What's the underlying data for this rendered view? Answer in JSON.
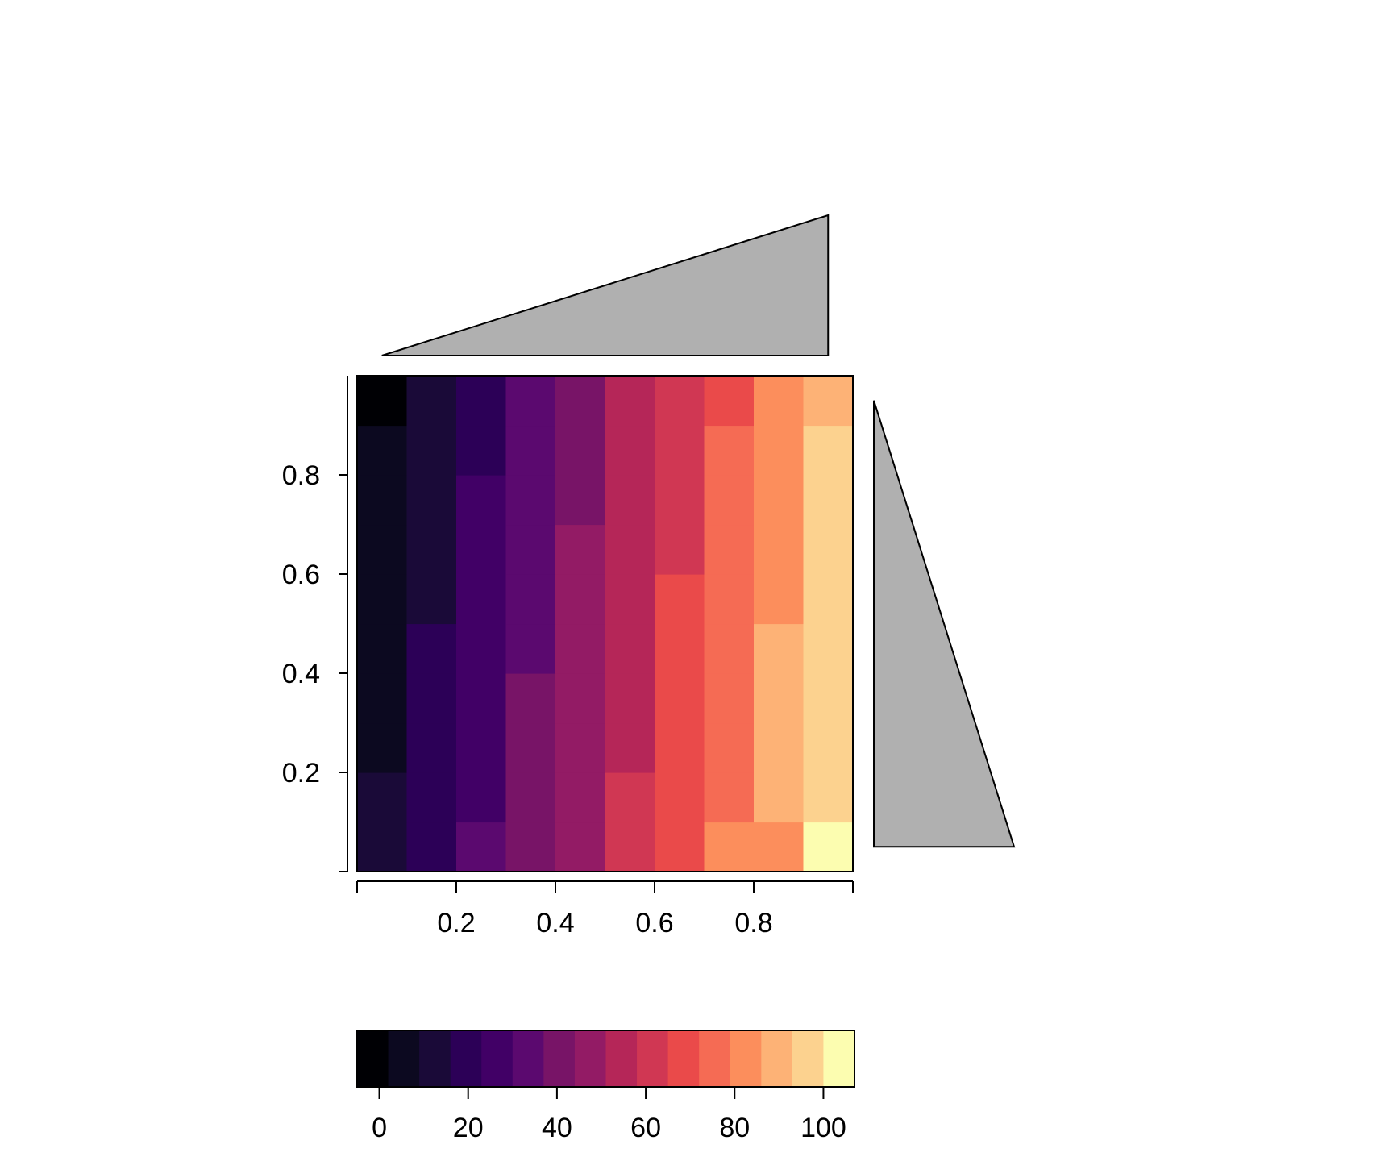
{
  "chart_data": {
    "type": "heatmap",
    "title": "",
    "xlabel": "",
    "ylabel": "",
    "xlim": [
      0,
      1
    ],
    "ylim": [
      0,
      1
    ],
    "grid": false,
    "x_centers": [
      0.05,
      0.15,
      0.25,
      0.35,
      0.45,
      0.55,
      0.65,
      0.75,
      0.85,
      0.95
    ],
    "y_centers": [
      0.05,
      0.15,
      0.25,
      0.35,
      0.45,
      0.55,
      0.65,
      0.75,
      0.85,
      0.95
    ],
    "x_ticks": [
      {
        "value": 0.2,
        "label": "0.2"
      },
      {
        "value": 0.4,
        "label": "0.4"
      },
      {
        "value": 0.6,
        "label": "0.6"
      },
      {
        "value": 0.8,
        "label": "0.8"
      }
    ],
    "y_ticks": [
      {
        "value": 0.2,
        "label": "0.2"
      },
      {
        "value": 0.4,
        "label": "0.4"
      },
      {
        "value": 0.6,
        "label": "0.6"
      },
      {
        "value": 0.8,
        "label": "0.8"
      }
    ],
    "z_columns": [
      [
        2,
        2,
        1,
        1,
        1,
        1,
        1,
        1,
        1,
        0
      ],
      [
        3,
        3,
        3,
        3,
        3,
        2,
        2,
        2,
        2,
        2
      ],
      [
        5,
        4,
        4,
        4,
        4,
        4,
        4,
        4,
        3,
        3
      ],
      [
        6,
        6,
        6,
        6,
        5,
        5,
        5,
        5,
        5,
        5
      ],
      [
        7,
        7,
        7,
        7,
        7,
        7,
        7,
        6,
        6,
        6
      ],
      [
        9,
        9,
        8,
        8,
        8,
        8,
        8,
        8,
        8,
        8
      ],
      [
        10,
        10,
        10,
        10,
        10,
        10,
        9,
        9,
        9,
        9
      ],
      [
        12,
        11,
        11,
        11,
        11,
        11,
        11,
        11,
        11,
        10
      ],
      [
        12,
        13,
        13,
        13,
        13,
        12,
        12,
        12,
        12,
        12
      ],
      [
        15,
        14,
        14,
        14,
        14,
        14,
        14,
        14,
        14,
        13
      ]
    ],
    "x_marginal": {
      "values": [
        0.05,
        0.95
      ],
      "heights": [
        0,
        1
      ]
    },
    "y_marginal": {
      "values": [
        0.05,
        0.95
      ],
      "widths": [
        1,
        0
      ]
    },
    "colorbar": {
      "range": [
        -5,
        107
      ],
      "ticks": [
        {
          "value": 0,
          "label": "0"
        },
        {
          "value": 20,
          "label": "20"
        },
        {
          "value": 40,
          "label": "40"
        },
        {
          "value": 60,
          "label": "60"
        },
        {
          "value": 80,
          "label": "80"
        },
        {
          "value": 100,
          "label": "100"
        }
      ],
      "colors": [
        "#000004",
        "#0c0920",
        "#1a0a38",
        "#2c0057",
        "#410066",
        "#5b096f",
        "#781467",
        "#931b65",
        "#b52658",
        "#d03753",
        "#ea4a4a",
        "#f56b54",
        "#fc8e5c",
        "#fdb276",
        "#fcd28f",
        "#fcfdb0"
      ]
    }
  }
}
